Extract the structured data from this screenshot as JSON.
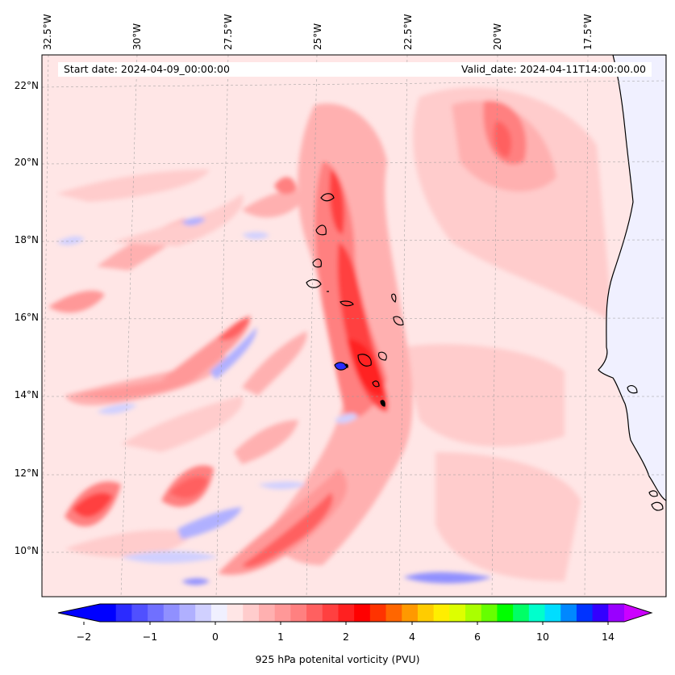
{
  "header": {
    "start_date": "Start date: 2024-04-09_00:00:00",
    "valid_date": "Valid_date: 2024-04-11T14:00:00.00"
  },
  "map": {
    "longitude_labels": [
      "32.5°W",
      "30°W",
      "27.5°W",
      "25°W",
      "22.5°W",
      "20°W",
      "17.5°W"
    ],
    "latitude_labels": [
      "22°N",
      "20°N",
      "18°N",
      "16°N",
      "14°N",
      "12°N",
      "10°N"
    ],
    "field_colors": {
      "ocean_background": "#ffe6e6",
      "land": "#f0f0ff",
      "coastline": "#000000"
    }
  },
  "colorbar": {
    "label": "925 hPa potenital vorticity (PVU)",
    "tick_labels": [
      "−2",
      "−1",
      "0",
      "1",
      "2",
      "4",
      "6",
      "10",
      "14"
    ],
    "colors": [
      "#0000ff",
      "#2b2bff",
      "#5050ff",
      "#7070ff",
      "#9090ff",
      "#b0b0ff",
      "#d0d0ff",
      "#f0f0ff",
      "#ffe6e6",
      "#ffcccc",
      "#ffb0b0",
      "#ff9898",
      "#ff8080",
      "#ff6060",
      "#ff4040",
      "#ff2020",
      "#ff0000",
      "#ff3300",
      "#ff6600",
      "#ff9900",
      "#ffcc00",
      "#ffee00",
      "#ddff00",
      "#aaff00",
      "#66ff00",
      "#00ff00",
      "#00ff66",
      "#00ffcc",
      "#00ddff",
      "#0088ff",
      "#0033ff",
      "#3300ff",
      "#9900ff"
    ],
    "extend_min_color": "#0000ff",
    "extend_max_color": "#cc00ff"
  }
}
